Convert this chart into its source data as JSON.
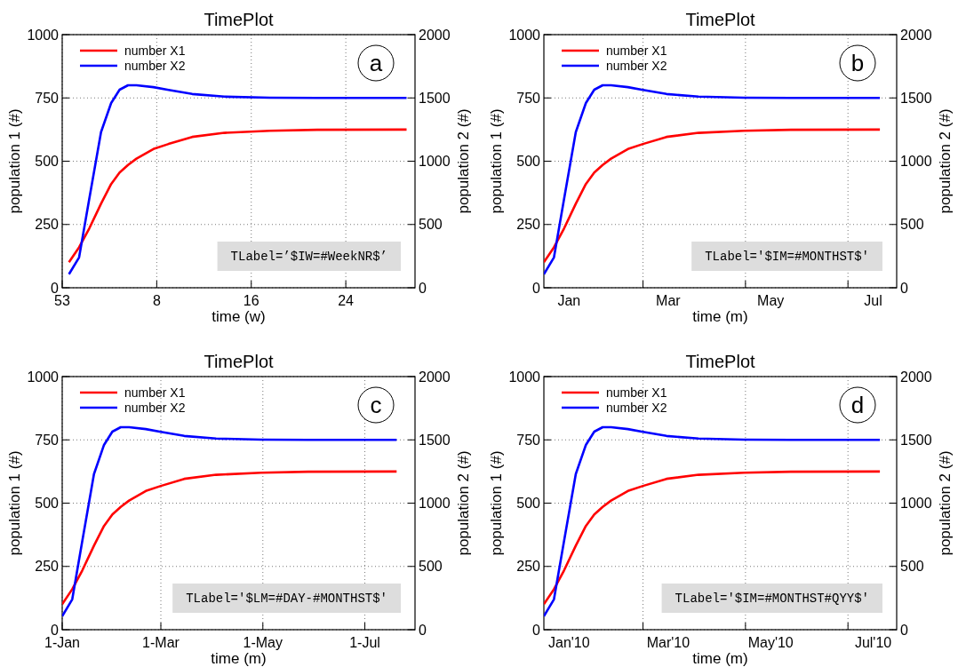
{
  "chart_data": [
    {
      "type": "line",
      "title": "TimePlot",
      "xlabel": "time (w)",
      "ylabel": "population 1 (#)",
      "y2label": "population 2 (#)",
      "legend": "top left",
      "grid": true,
      "line_style": "solid",
      "marker": "none",
      "x": [
        "2010-01-01",
        "2010-01-07",
        "2010-01-13",
        "2010-01-20",
        "2010-01-26",
        "2010-01-31",
        "2010-02-05",
        "2010-02-10",
        "2010-02-20",
        "2010-03-01",
        "2010-03-15",
        "2010-04-03",
        "2010-04-30",
        "2010-05-28",
        "2010-07-20"
      ],
      "xlim": [
        "2009-12-28",
        "2010-07-25"
      ],
      "xticks": [
        {
          "value": "2009-12-28",
          "label": "53"
        },
        {
          "value": "2010-02-22",
          "label": "8"
        },
        {
          "value": "2010-04-19",
          "label": "16"
        },
        {
          "value": "2010-06-14",
          "label": "24"
        }
      ],
      "ylim": [
        0,
        1000
      ],
      "yticks": [
        0,
        250,
        500,
        750,
        1000
      ],
      "y2lim": [
        0,
        2000
      ],
      "y2ticks": [
        0,
        500,
        1000,
        1500,
        2000
      ],
      "series": [
        {
          "name": "number X1",
          "color": "#ff0000",
          "values": [
            101,
            160,
            234,
            332,
            410,
            455,
            485,
            510,
            548,
            568,
            596,
            612,
            620,
            624,
            625
          ]
        },
        {
          "name": "number X2",
          "color": "#0000ff",
          "axis": "y2",
          "values": [
            107,
            240,
            700,
            1230,
            1460,
            1565,
            1600,
            1600,
            1585,
            1563,
            1531,
            1510,
            1502,
            1500,
            1500
          ]
        }
      ],
      "annotations": [
        "a",
        "TLabel=’$IW=#WeekNR$’"
      ]
    },
    {
      "type": "line",
      "title": "TimePlot",
      "xlabel": "time (m)",
      "ylabel": "population 1 (#)",
      "y2label": "population 2 (#)",
      "legend": "top left",
      "grid": true,
      "line_style": "solid",
      "marker": "none",
      "x": [
        "2010-01-01",
        "2010-01-07",
        "2010-01-13",
        "2010-01-20",
        "2010-01-26",
        "2010-01-31",
        "2010-02-05",
        "2010-02-10",
        "2010-02-20",
        "2010-03-01",
        "2010-03-15",
        "2010-04-03",
        "2010-04-30",
        "2010-05-28",
        "2010-07-20"
      ],
      "xlim": [
        "2010-01-01",
        "2010-07-30"
      ],
      "xticks": [
        {
          "value": "2010-01-16",
          "label": "Jan"
        },
        {
          "value": "2010-03-01",
          "label": null
        },
        {
          "value": "2010-03-16",
          "label": "Mar"
        },
        {
          "value": "2010-05-01",
          "label": null
        },
        {
          "value": "2010-05-16",
          "label": "May"
        },
        {
          "value": "2010-07-01",
          "label": null
        },
        {
          "value": "2010-07-16",
          "label": "Jul"
        }
      ],
      "ylim": [
        0,
        1000
      ],
      "yticks": [
        0,
        250,
        500,
        750,
        1000
      ],
      "y2lim": [
        0,
        2000
      ],
      "y2ticks": [
        0,
        500,
        1000,
        1500,
        2000
      ],
      "series": [
        {
          "name": "number X1",
          "color": "#ff0000",
          "values": [
            101,
            160,
            234,
            332,
            410,
            455,
            485,
            510,
            548,
            568,
            596,
            612,
            620,
            624,
            625
          ]
        },
        {
          "name": "number X2",
          "color": "#0000ff",
          "axis": "y2",
          "values": [
            107,
            240,
            700,
            1230,
            1460,
            1565,
            1600,
            1600,
            1585,
            1563,
            1531,
            1510,
            1502,
            1500,
            1500
          ]
        }
      ],
      "annotations": [
        "b",
        "TLabel='$IM=#MONTHST$'"
      ]
    },
    {
      "type": "line",
      "title": "TimePlot",
      "xlabel": "time (m)",
      "ylabel": "population 1 (#)",
      "y2label": "population 2 (#)",
      "legend": "top left",
      "grid": true,
      "line_style": "solid",
      "marker": "none",
      "x": [
        "2010-01-01",
        "2010-01-07",
        "2010-01-13",
        "2010-01-20",
        "2010-01-26",
        "2010-01-31",
        "2010-02-05",
        "2010-02-10",
        "2010-02-20",
        "2010-03-01",
        "2010-03-15",
        "2010-04-03",
        "2010-04-30",
        "2010-05-28",
        "2010-07-20"
      ],
      "xlim": [
        "2010-01-01",
        "2010-07-31"
      ],
      "xticks": [
        {
          "value": "2010-01-01",
          "label": "1-Jan"
        },
        {
          "value": "2010-03-01",
          "label": "1-Mar"
        },
        {
          "value": "2010-05-01",
          "label": "1-May"
        },
        {
          "value": "2010-07-01",
          "label": "1-Jul"
        }
      ],
      "ylim": [
        0,
        1000
      ],
      "yticks": [
        0,
        250,
        500,
        750,
        1000
      ],
      "y2lim": [
        0,
        2000
      ],
      "y2ticks": [
        0,
        500,
        1000,
        1500,
        2000
      ],
      "series": [
        {
          "name": "number X1",
          "color": "#ff0000",
          "values": [
            101,
            160,
            234,
            332,
            410,
            455,
            485,
            510,
            548,
            568,
            596,
            612,
            620,
            624,
            625
          ]
        },
        {
          "name": "number X2",
          "color": "#0000ff",
          "axis": "y2",
          "values": [
            107,
            240,
            700,
            1230,
            1460,
            1565,
            1600,
            1600,
            1585,
            1563,
            1531,
            1510,
            1502,
            1500,
            1500
          ]
        }
      ],
      "annotations": [
        "c",
        "TLabel='$LM=#DAY-#MONTHST$'"
      ]
    },
    {
      "type": "line",
      "title": "TimePlot",
      "xlabel": "time (m)",
      "ylabel": "population 1 (#)",
      "y2label": "population 2 (#)",
      "legend": "top left",
      "grid": true,
      "line_style": "solid",
      "marker": "none",
      "x": [
        "2010-01-01",
        "2010-01-07",
        "2010-01-13",
        "2010-01-20",
        "2010-01-26",
        "2010-01-31",
        "2010-02-05",
        "2010-02-10",
        "2010-02-20",
        "2010-03-01",
        "2010-03-15",
        "2010-04-03",
        "2010-04-30",
        "2010-05-28",
        "2010-07-20"
      ],
      "xlim": [
        "2010-01-01",
        "2010-07-30"
      ],
      "xticks": [
        {
          "value": "2010-01-16",
          "label": "Jan'10"
        },
        {
          "value": "2010-03-01",
          "label": null
        },
        {
          "value": "2010-03-16",
          "label": "Mar'10"
        },
        {
          "value": "2010-05-01",
          "label": null
        },
        {
          "value": "2010-05-16",
          "label": "May'10"
        },
        {
          "value": "2010-07-01",
          "label": null
        },
        {
          "value": "2010-07-16",
          "label": "Jul'10"
        }
      ],
      "ylim": [
        0,
        1000
      ],
      "yticks": [
        0,
        250,
        500,
        750,
        1000
      ],
      "y2lim": [
        0,
        2000
      ],
      "y2ticks": [
        0,
        500,
        1000,
        1500,
        2000
      ],
      "series": [
        {
          "name": "number X1",
          "color": "#ff0000",
          "values": [
            101,
            160,
            234,
            332,
            410,
            455,
            485,
            510,
            548,
            568,
            596,
            612,
            620,
            624,
            625
          ]
        },
        {
          "name": "number X2",
          "color": "#0000ff",
          "axis": "y2",
          "values": [
            107,
            240,
            700,
            1230,
            1460,
            1565,
            1600,
            1600,
            1585,
            1563,
            1531,
            1510,
            1502,
            1500,
            1500
          ]
        }
      ],
      "annotations": [
        "d",
        "TLabel='$IM=#MONTHST#QYY$'"
      ]
    }
  ]
}
